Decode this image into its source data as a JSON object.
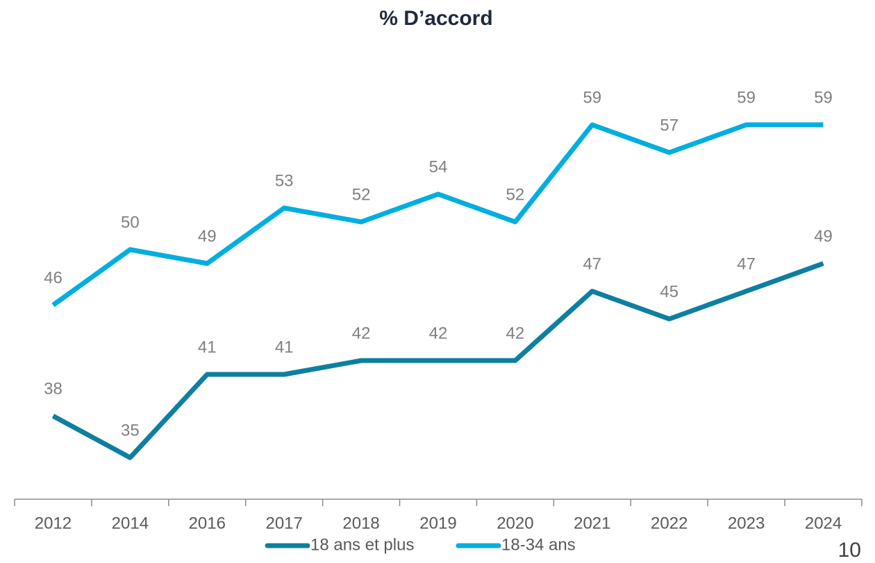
{
  "chart_data": {
    "type": "line",
    "title": "% D’accord",
    "categories": [
      "2012",
      "2014",
      "2016",
      "2017",
      "2018",
      "2019",
      "2020",
      "2021",
      "2022",
      "2023",
      "2024"
    ],
    "series": [
      {
        "name": "18 ans et plus",
        "color": "#0e7fa0",
        "values": [
          38,
          35,
          41,
          41,
          42,
          42,
          42,
          47,
          45,
          47,
          49
        ]
      },
      {
        "name": "18-34 ans",
        "color": "#00aee0",
        "values": [
          46,
          50,
          49,
          53,
          52,
          54,
          52,
          59,
          57,
          59,
          59
        ]
      }
    ],
    "ylim": [
      32,
      65
    ],
    "legend": "bottom"
  },
  "page_number": "10"
}
